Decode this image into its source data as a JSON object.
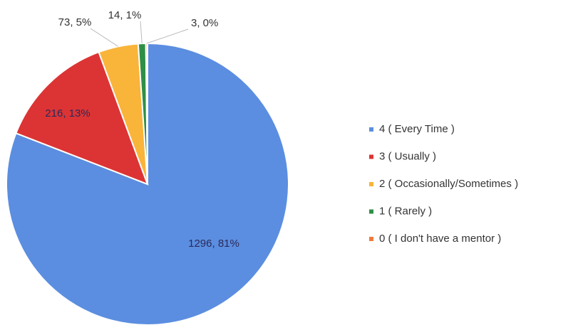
{
  "chart_data": {
    "type": "pie",
    "categories": [
      "4 ( Every Time )",
      "3 ( Usually )",
      "2 ( Occasionally/Sometimes )",
      "1 ( Rarely  )",
      "0 ( I don't have a mentor )"
    ],
    "values": [
      1296,
      216,
      73,
      14,
      3
    ],
    "value_labels": [
      "1296, 81%",
      "216, 13%",
      "73, 5%",
      "14, 1%",
      "3, 0%"
    ],
    "colors": [
      "#5b8ee0",
      "#dc3434",
      "#f9b43a",
      "#2f8f45",
      "#ee7a3c"
    ],
    "legend": "right"
  }
}
